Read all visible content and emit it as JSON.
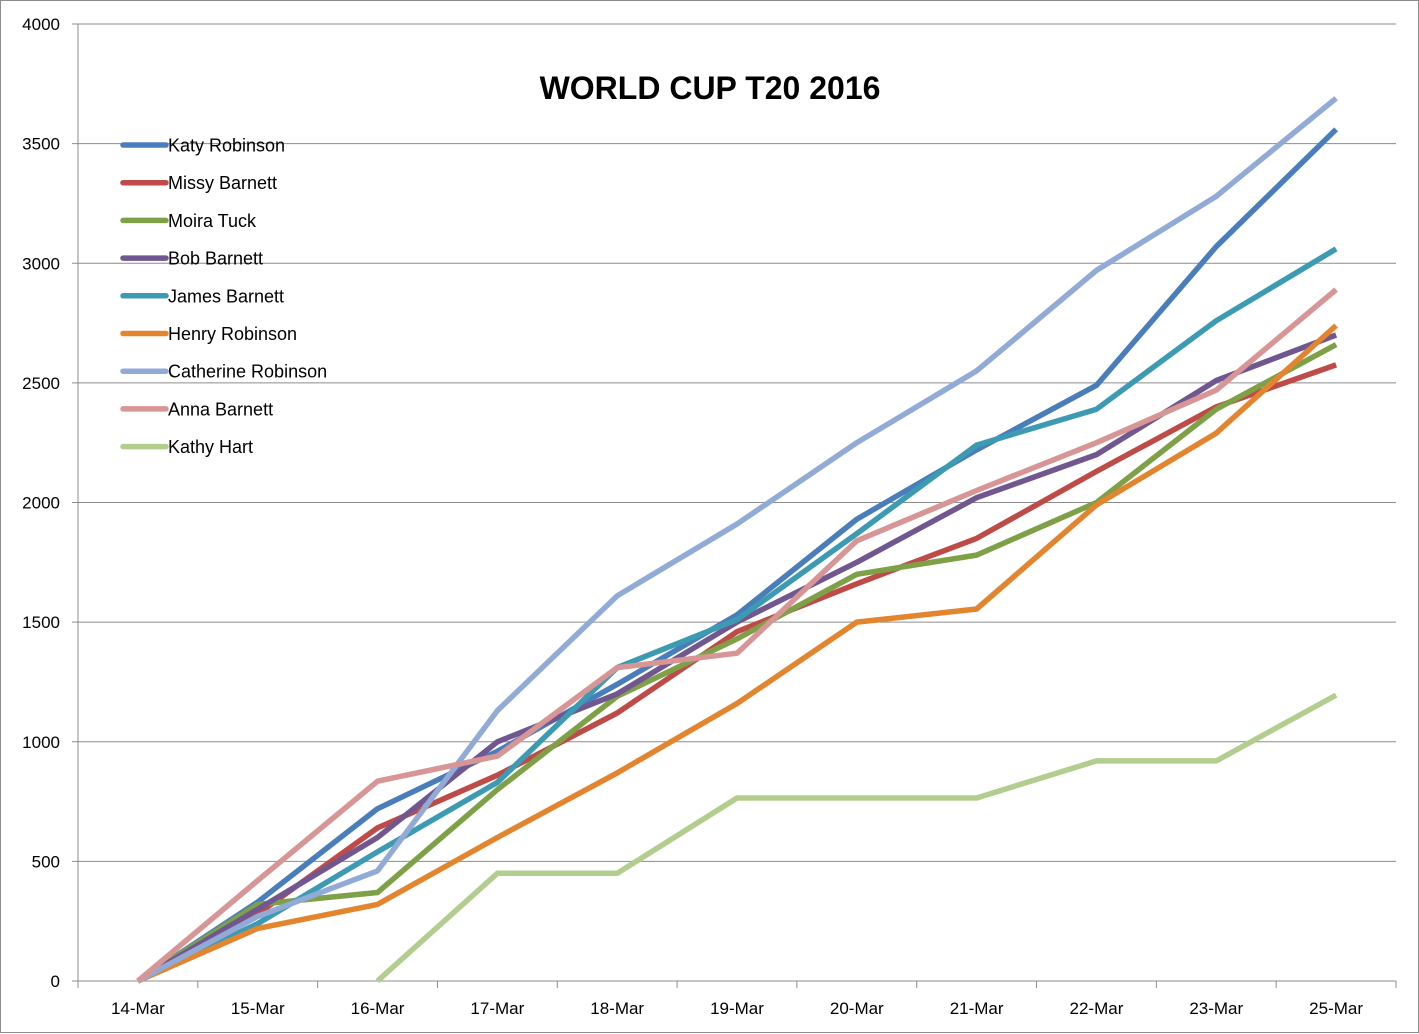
{
  "chart_data": {
    "type": "line",
    "title": "WORLD CUP T20 2016",
    "xlabel": "",
    "ylabel": "",
    "ylim": [
      0,
      4000
    ],
    "yticks": [
      0,
      500,
      1000,
      1500,
      2000,
      2500,
      3000,
      3500,
      4000
    ],
    "categories": [
      "14-Mar",
      "15-Mar",
      "16-Mar",
      "17-Mar",
      "18-Mar",
      "19-Mar",
      "20-Mar",
      "21-Mar",
      "22-Mar",
      "23-Mar",
      "25-Mar"
    ],
    "grid": "horizontal",
    "legend_position": "top-left",
    "series": [
      {
        "name": "Katy Robinson",
        "color": "#4A7EBB",
        "values": [
          0,
          330,
          720,
          960,
          1240,
          1530,
          1930,
          2220,
          2490,
          3070,
          3560
        ]
      },
      {
        "name": "Missy Barnett",
        "color": "#BE4B48",
        "values": [
          0,
          280,
          640,
          860,
          1120,
          1460,
          1660,
          1850,
          2130,
          2400,
          2575
        ]
      },
      {
        "name": "Moira Tuck",
        "color": "#7EA148",
        "values": [
          0,
          320,
          370,
          800,
          1190,
          1430,
          1700,
          1780,
          2000,
          2390,
          2660
        ]
      },
      {
        "name": "Bob Barnett",
        "color": "#71578F",
        "values": [
          0,
          300,
          600,
          1000,
          1200,
          1500,
          1750,
          2020,
          2200,
          2510,
          2700
        ]
      },
      {
        "name": "James Barnett",
        "color": "#3C9BB3",
        "values": [
          0,
          240,
          540,
          830,
          1310,
          1510,
          1870,
          2240,
          2390,
          2760,
          3060
        ]
      },
      {
        "name": "Henry Robinson",
        "color": "#E3852F",
        "values": [
          0,
          220,
          320,
          600,
          870,
          1160,
          1500,
          1555,
          1990,
          2290,
          2740
        ]
      },
      {
        "name": "Catherine Robinson",
        "color": "#91ABD6",
        "values": [
          0,
          270,
          460,
          1130,
          1610,
          1910,
          2250,
          2550,
          2970,
          3280,
          3690
        ]
      },
      {
        "name": "Anna Barnett",
        "color": "#D89596",
        "values": [
          0,
          420,
          835,
          940,
          1310,
          1370,
          1840,
          2050,
          2250,
          2470,
          2890
        ]
      },
      {
        "name": "Kathy Hart",
        "color": "#B3CD8F",
        "values": [
          null,
          null,
          0,
          450,
          450,
          765,
          765,
          765,
          920,
          920,
          1195
        ]
      }
    ]
  }
}
